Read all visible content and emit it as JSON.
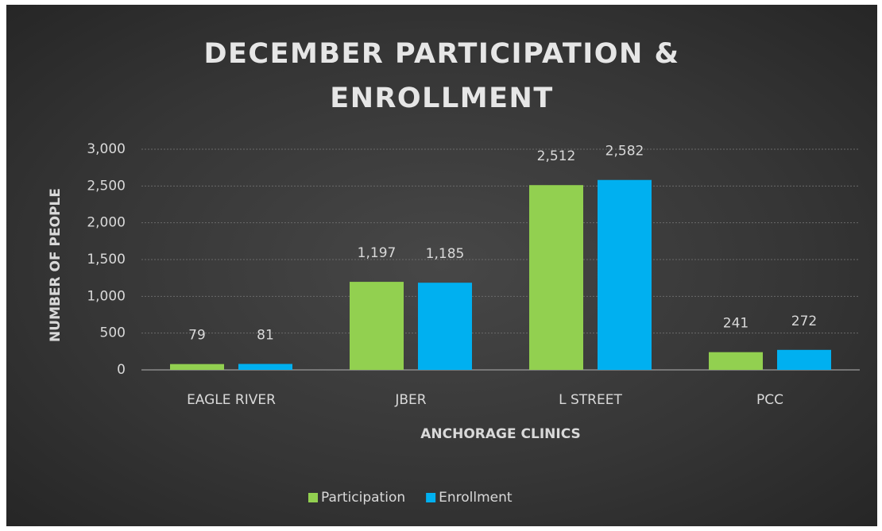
{
  "chart_data": {
    "type": "bar",
    "title": "DECEMBER PARTICIPATION & ENROLLMENT",
    "categories": [
      "EAGLE RIVER",
      "JBER",
      "L STREET",
      "PCC"
    ],
    "series": [
      {
        "name": "Participation",
        "color": "#92d050",
        "values": [
          79,
          1197,
          2512,
          241
        ],
        "value_labels": [
          "79",
          "1,197",
          "2,512",
          "241"
        ]
      },
      {
        "name": "Enrollment",
        "color": "#00b0f0",
        "values": [
          81,
          1185,
          2582,
          272
        ],
        "value_labels": [
          "81",
          "1,185",
          "2,582",
          "272"
        ]
      }
    ],
    "xlabel": "ANCHORAGE CLINICS",
    "ylabel": "NUMBER OF PEOPLE",
    "ylim": [
      0,
      3000
    ],
    "yticks": [
      0,
      500,
      {
        "value": 1000,
        "label": "1,000"
      },
      {
        "value": 1500,
        "label": "1,500"
      },
      {
        "value": 2000,
        "label": "2,000"
      },
      {
        "value": 2500,
        "label": "2,500"
      },
      {
        "value": 3000,
        "label": "3,000"
      }
    ],
    "grid": true,
    "legend": "bottom"
  }
}
